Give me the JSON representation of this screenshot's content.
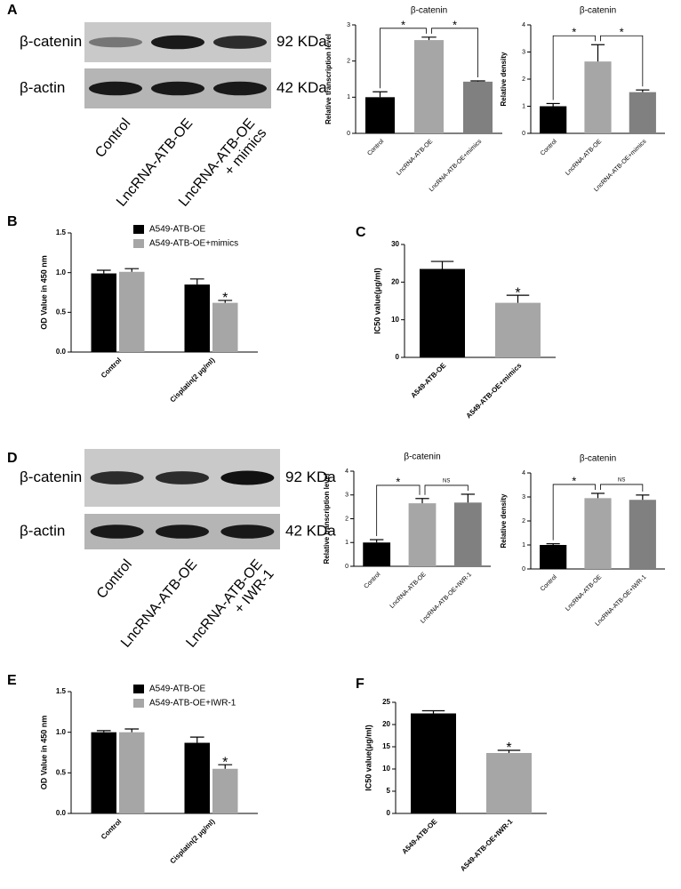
{
  "panel_labels": [
    "A",
    "B",
    "C",
    "D",
    "E",
    "F"
  ],
  "blots": [
    {
      "rows": [
        "β-catenin",
        "β-actin"
      ],
      "sizes": [
        "92 KDa",
        "42 KDa"
      ],
      "lanes": [
        [
          "Control"
        ],
        [
          "LncRNA-ATB-OE"
        ],
        [
          "LncRNA-ATB-OE",
          "+ mimics"
        ]
      ]
    },
    {
      "rows": [
        "β-catenin",
        "β-actin"
      ],
      "sizes": [
        "92 KDa",
        "42 KDa"
      ],
      "lanes": [
        [
          "Control"
        ],
        [
          "LncRNA-ATB-OE"
        ],
        [
          "LncRNA-ATB-OE",
          "+ IWR-1"
        ]
      ]
    }
  ],
  "chart_data": [
    {
      "type": "bar",
      "title": "β-catenin",
      "y_label": "Relative transcription level",
      "categories": [
        "Control",
        "LncRNA-ATB-OE",
        "LncRNA-ATB-OE+mimics"
      ],
      "values": [
        1.0,
        2.58,
        1.43
      ],
      "errors": [
        0.15,
        0.08,
        0.02
      ],
      "colors": [
        "#000000",
        "#a6a6a6",
        "#808080"
      ],
      "ylim": [
        0,
        3
      ],
      "yticks": [
        0,
        1,
        2,
        3
      ],
      "annotations": [
        "*",
        "*"
      ]
    },
    {
      "type": "bar",
      "title": "β-catenin",
      "y_label": "Relative density",
      "categories": [
        "Control",
        "LncRNA-ATB-OE",
        "LncRNA-ATB-OE+mimics"
      ],
      "values": [
        1.0,
        2.65,
        1.52
      ],
      "errors": [
        0.1,
        0.62,
        0.08
      ],
      "colors": [
        "#000000",
        "#a6a6a6",
        "#808080"
      ],
      "ylim": [
        0,
        4
      ],
      "yticks": [
        0,
        1,
        2,
        3,
        4
      ],
      "annotations": [
        "*",
        "*"
      ]
    },
    {
      "type": "grouped_bar",
      "y_label": "OD Value in 450 nm",
      "categories": [
        "Control",
        "Cisplatin(2 μg/ml)"
      ],
      "series": [
        {
          "name": "A549-ATB-OE",
          "color": "#000000",
          "values": [
            0.99,
            0.85
          ],
          "errors": [
            0.04,
            0.07
          ]
        },
        {
          "name": "A549-ATB-OE+mimics",
          "color": "#a6a6a6",
          "values": [
            1.01,
            0.62
          ],
          "errors": [
            0.04,
            0.03
          ]
        }
      ],
      "ylim": [
        0,
        1.5
      ],
      "yticks": [
        {
          "value": 0,
          "label": "0.0"
        },
        {
          "value": 0.5,
          "label": "0.5"
        },
        {
          "value": 1,
          "label": "1.0"
        },
        {
          "value": 1.5,
          "label": "1.5"
        }
      ],
      "annotations": [
        "*"
      ]
    },
    {
      "type": "bar",
      "y_label": "IC50 value(μg/ml)",
      "categories": [
        "A549-ATB-OE",
        "A549-ATB-OE+mimics"
      ],
      "values": [
        23.5,
        14.5
      ],
      "errors": [
        2.0,
        2.0
      ],
      "colors": [
        "#000000",
        "#a6a6a6"
      ],
      "ylim": [
        0,
        30
      ],
      "yticks": [
        0,
        10,
        20,
        30
      ],
      "annotations": [
        "*"
      ]
    },
    {
      "type": "bar",
      "title": "β-catenin",
      "y_label": "Relative transcription level",
      "categories": [
        "Control",
        "LncRNA-ATB-OE",
        "LncRNA-ATB-OE+IWR-1"
      ],
      "values": [
        1.0,
        2.65,
        2.68
      ],
      "errors": [
        0.12,
        0.2,
        0.35
      ],
      "colors": [
        "#000000",
        "#a6a6a6",
        "#808080"
      ],
      "ylim": [
        0,
        4
      ],
      "yticks": [
        0,
        1,
        2,
        3,
        4
      ],
      "annotations": [
        "*",
        "NS"
      ]
    },
    {
      "type": "bar",
      "title": "β-catenin",
      "y_label": "Relative density",
      "categories": [
        "Control",
        "LncRNA-ATB-OE",
        "LncRNA-ATB-OE+IWR-1"
      ],
      "values": [
        1.0,
        2.95,
        2.88
      ],
      "errors": [
        0.05,
        0.2,
        0.2
      ],
      "colors": [
        "#000000",
        "#a6a6a6",
        "#808080"
      ],
      "ylim": [
        0,
        4
      ],
      "yticks": [
        0,
        1,
        2,
        3,
        4
      ],
      "annotations": [
        "*",
        "NS"
      ]
    },
    {
      "type": "grouped_bar",
      "y_label": "OD Value in 450 nm",
      "categories": [
        "Control",
        "Cisplatin(2 μg/ml)"
      ],
      "series": [
        {
          "name": "A549-ATB-OE",
          "color": "#000000",
          "values": [
            1.0,
            0.87
          ],
          "errors": [
            0.02,
            0.07
          ]
        },
        {
          "name": "A549-ATB-OE+IWR-1",
          "color": "#a6a6a6",
          "values": [
            1.0,
            0.55
          ],
          "errors": [
            0.04,
            0.05
          ]
        }
      ],
      "ylim": [
        0,
        1.5
      ],
      "yticks": [
        {
          "value": 0,
          "label": "0.0"
        },
        {
          "value": 0.5,
          "label": "0.5"
        },
        {
          "value": 1,
          "label": "1.0"
        },
        {
          "value": 1.5,
          "label": "1.5"
        }
      ],
      "annotations": [
        "*"
      ]
    },
    {
      "type": "bar",
      "y_label": "IC50 value(μg/ml)",
      "categories": [
        "A549-ATB-OE",
        "A549-ATB-OE+IWR-1"
      ],
      "values": [
        22.5,
        13.6
      ],
      "errors": [
        0.6,
        0.6
      ],
      "colors": [
        "#000000",
        "#a6a6a6"
      ],
      "ylim": [
        0,
        25
      ],
      "yticks": [
        0,
        5,
        10,
        15,
        20,
        25
      ],
      "annotations": [
        "*"
      ]
    }
  ]
}
